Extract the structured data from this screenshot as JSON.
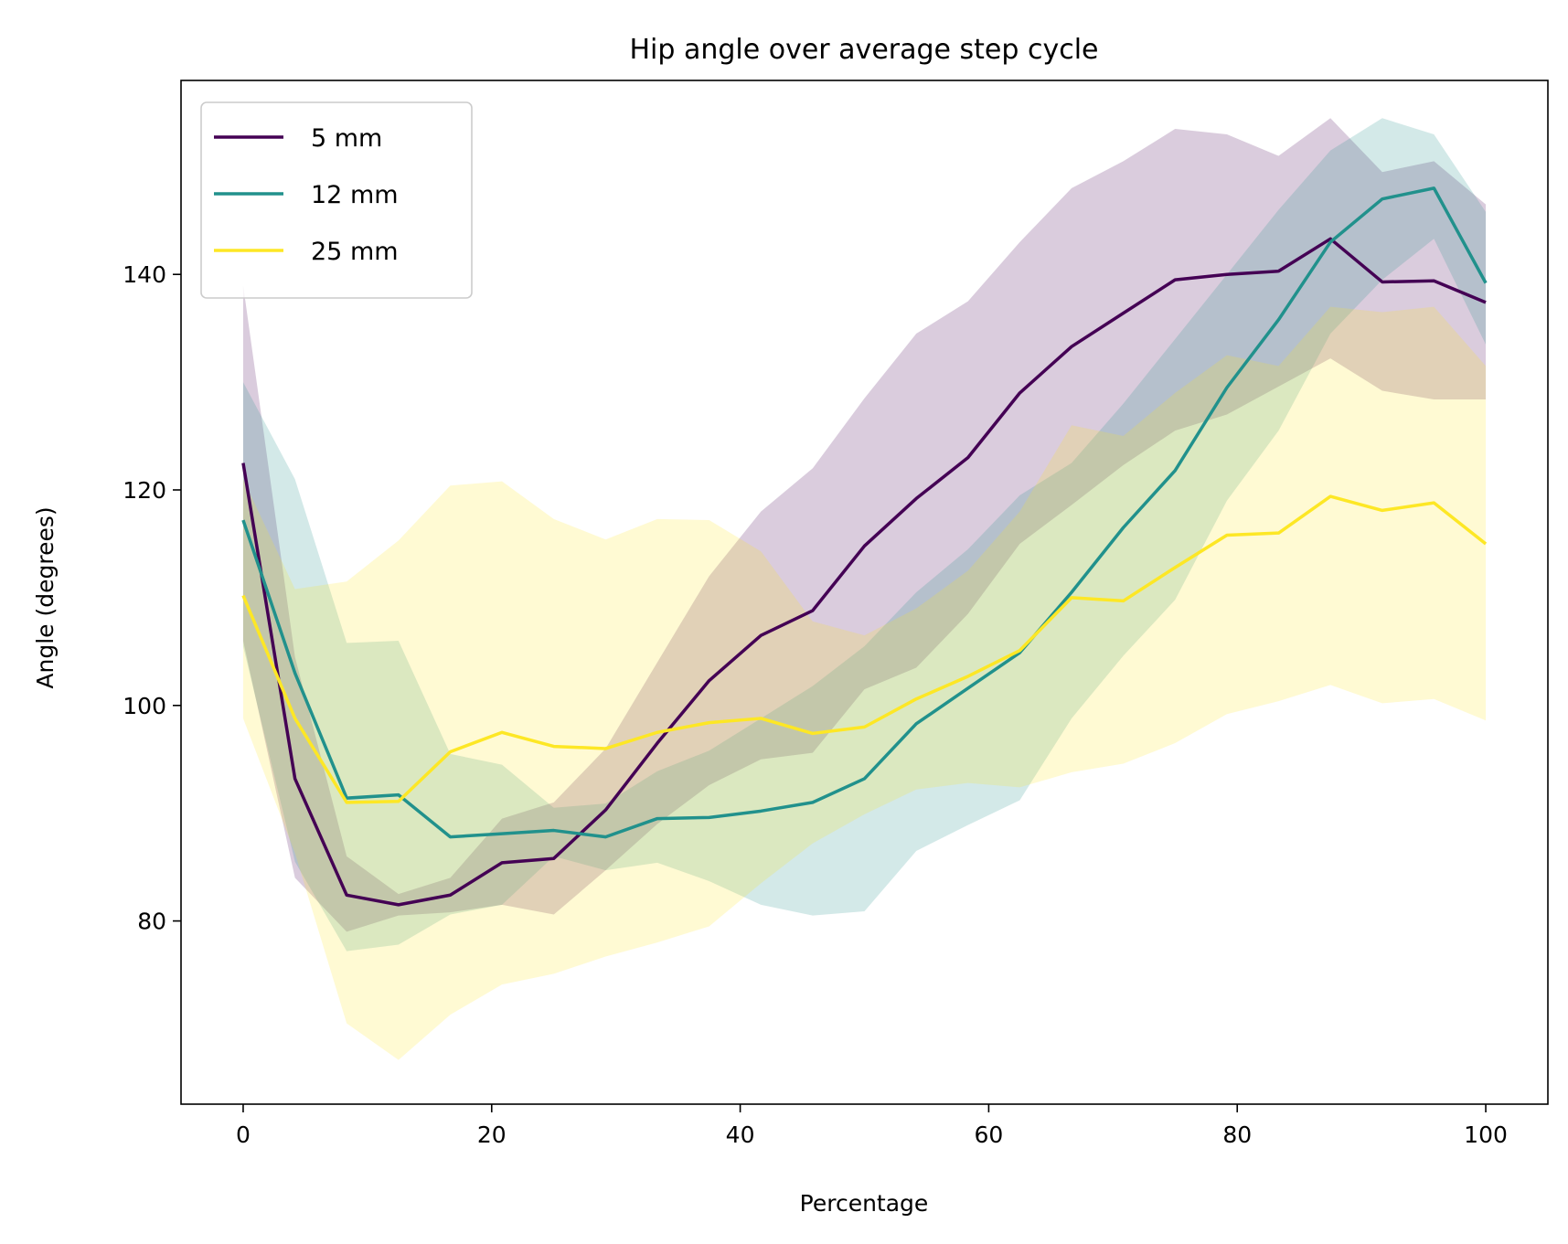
{
  "chart_data": {
    "type": "line",
    "title": "Hip  angle over average step cycle",
    "xlabel": "Percentage",
    "ylabel": "Angle (degrees)",
    "xlim": [
      -5,
      105
    ],
    "ylim": [
      63,
      158
    ],
    "xticks": [
      0,
      20,
      40,
      60,
      80,
      100
    ],
    "yticks": [
      80,
      100,
      120,
      140
    ],
    "grid": false,
    "legend_position": "upper-left",
    "x": [
      0,
      4.17,
      8.33,
      12.5,
      16.67,
      20.83,
      25,
      29.17,
      33.33,
      37.5,
      41.67,
      45.83,
      50,
      54.17,
      58.33,
      62.5,
      66.67,
      70.83,
      75,
      79.17,
      83.33,
      87.5,
      91.67,
      95.83,
      100
    ],
    "series": [
      {
        "name": "5 mm",
        "color": "#440154",
        "values": [
          122.5,
          93.2,
          82.4,
          81.5,
          82.4,
          85.4,
          85.8,
          90.3,
          96.5,
          102.3,
          106.5,
          108.8,
          114.8,
          119.2,
          123.0,
          129.0,
          133.3,
          136.4,
          139.5,
          140.0,
          140.3,
          143.3,
          139.3,
          139.4,
          137.4
        ],
        "band_upper": [
          139.0,
          104.5,
          86.0,
          82.5,
          84.0,
          89.5,
          91.0,
          96.0,
          104.0,
          112.0,
          118.0,
          122.0,
          128.5,
          134.5,
          137.5,
          143.0,
          148.0,
          150.5,
          153.5,
          153.0,
          151.0,
          154.5,
          149.5,
          150.5,
          146.5
        ],
        "band_lower": [
          106.0,
          84.0,
          79.0,
          80.5,
          80.8,
          81.5,
          80.6,
          84.7,
          89.0,
          92.6,
          95.0,
          95.6,
          101.5,
          103.5,
          108.5,
          115.0,
          118.6,
          122.3,
          125.5,
          127.0,
          129.6,
          132.2,
          129.2,
          128.4,
          128.4
        ]
      },
      {
        "name": "12 mm",
        "color": "#21918c",
        "values": [
          117.2,
          103.0,
          91.4,
          91.7,
          87.8,
          88.1,
          88.4,
          87.8,
          89.5,
          89.6,
          90.2,
          91.0,
          93.2,
          98.3,
          101.6,
          104.9,
          110.5,
          116.5,
          121.8,
          129.5,
          135.8,
          143.0,
          147.0,
          148.0,
          139.2
        ],
        "band_upper": [
          130.0,
          121.0,
          105.8,
          106.0,
          95.5,
          94.5,
          90.5,
          90.9,
          93.9,
          95.8,
          98.8,
          101.8,
          105.5,
          110.5,
          114.5,
          119.5,
          122.5,
          128.0,
          134.0,
          140.0,
          146.0,
          151.5,
          154.5,
          153.0,
          145.8
        ],
        "band_lower": [
          105.5,
          85.5,
          77.2,
          77.8,
          80.6,
          81.5,
          86.0,
          84.7,
          85.4,
          83.7,
          81.5,
          80.5,
          80.9,
          86.5,
          88.9,
          91.2,
          98.8,
          104.6,
          109.8,
          119.0,
          125.5,
          134.5,
          139.5,
          143.3,
          133.5
        ]
      },
      {
        "name": "25 mm",
        "color": "#fde725",
        "values": [
          110.2,
          98.8,
          91.0,
          91.1,
          95.7,
          97.5,
          96.2,
          96.0,
          97.5,
          98.4,
          98.8,
          97.4,
          98.0,
          100.6,
          102.7,
          105.1,
          110.0,
          109.7,
          112.8,
          115.8,
          116.0,
          119.4,
          118.1,
          118.8,
          115.0
        ],
        "band_upper": [
          121.0,
          110.8,
          111.5,
          115.3,
          120.4,
          120.8,
          117.3,
          115.4,
          117.3,
          117.2,
          114.3,
          107.8,
          106.5,
          109.0,
          112.5,
          118.0,
          126.0,
          125.0,
          129.0,
          132.5,
          131.5,
          137.0,
          136.5,
          137.0,
          131.5
        ],
        "band_lower": [
          98.8,
          86.3,
          70.5,
          67.1,
          71.3,
          74.1,
          75.1,
          76.7,
          78.0,
          79.5,
          83.5,
          87.2,
          89.9,
          92.2,
          92.8,
          92.4,
          93.8,
          94.6,
          96.5,
          99.2,
          100.4,
          101.9,
          100.2,
          100.6,
          98.6
        ]
      }
    ]
  }
}
